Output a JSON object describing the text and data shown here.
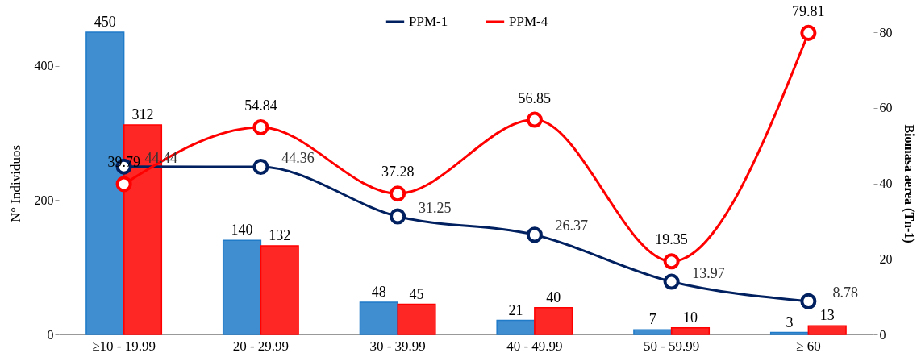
{
  "chart_data": {
    "type": "bar",
    "ylabel": "N° Individuos",
    "y2label": "Biomasa aerea (Tn-1)",
    "categories": [
      "≥10 - 19.99",
      "20 - 29.99",
      "30 - 39.99",
      "40 - 49.99",
      "50 - 59.99",
      "≥ 60"
    ],
    "series": [
      {
        "type": "bar",
        "color": "#1f7ac8",
        "values": [
          450,
          140,
          48,
          21,
          7,
          3
        ]
      },
      {
        "type": "bar",
        "color": "#ff0000",
        "values": [
          312,
          132,
          45,
          40,
          10,
          13
        ]
      },
      {
        "type": "line",
        "name": "PPM-1",
        "color": "#002060",
        "axis": "y2",
        "values": [
          44.44,
          44.36,
          31.25,
          26.37,
          13.97,
          8.78
        ]
      },
      {
        "type": "line",
        "name": "PPM-4",
        "color": "#ff0000",
        "axis": "y2",
        "values": [
          39.79,
          54.84,
          37.28,
          56.85,
          19.35,
          79.81
        ]
      }
    ],
    "ylim": [
      0,
      450
    ],
    "yticks": [
      0,
      200,
      400
    ],
    "y2lim": [
      0,
      80
    ],
    "y2ticks": [
      0,
      20,
      40,
      60,
      80
    ],
    "data_labels": true,
    "grid": false,
    "legend": "top",
    "marker": "circle",
    "line_style": "solid"
  }
}
